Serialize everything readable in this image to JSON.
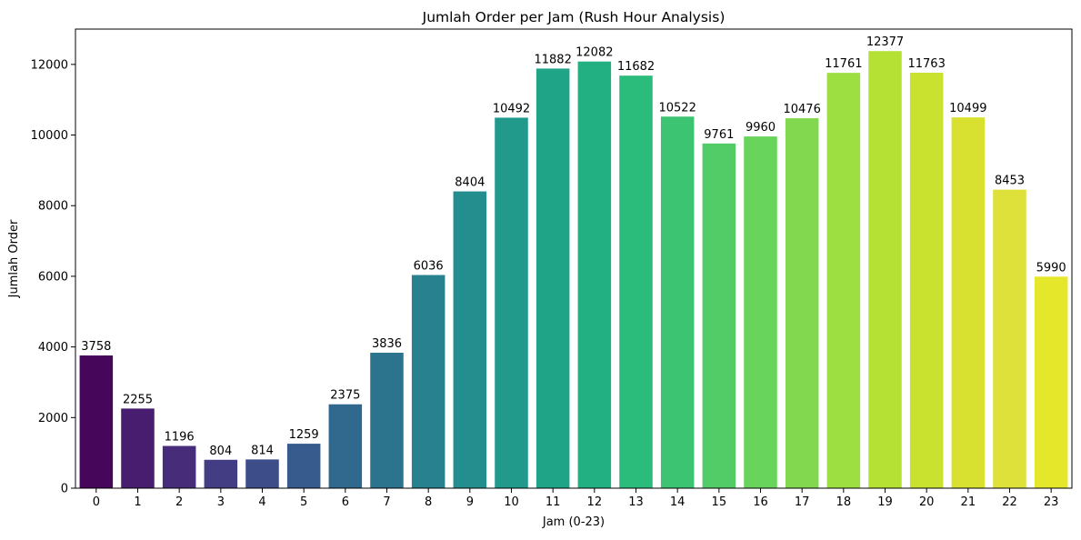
{
  "chart_data": {
    "type": "bar",
    "title": "Jumlah Order per Jam (Rush Hour Analysis)",
    "xlabel": "Jam (0-23)",
    "ylabel": "Jumlah Order",
    "categories": [
      "0",
      "1",
      "2",
      "3",
      "4",
      "5",
      "6",
      "7",
      "8",
      "9",
      "10",
      "11",
      "12",
      "13",
      "14",
      "15",
      "16",
      "17",
      "18",
      "19",
      "20",
      "21",
      "22",
      "23"
    ],
    "values": [
      3758,
      2255,
      1196,
      804,
      814,
      1259,
      2375,
      3836,
      6036,
      8404,
      10492,
      11882,
      12082,
      11682,
      10522,
      9761,
      9960,
      10476,
      11761,
      12377,
      11763,
      10499,
      8453,
      5990
    ],
    "value_labels": [
      "3758",
      "2255",
      "1196",
      "804",
      "814",
      "1259",
      "2375",
      "3836",
      "6036",
      "8404",
      "10492",
      "11882",
      "12082",
      "11682",
      "10522",
      "9761",
      "9960",
      "10476",
      "11761",
      "12377",
      "11763",
      "10499",
      "8453",
      "5990"
    ],
    "ylim": [
      0,
      13000
    ],
    "yticks": [
      0,
      2000,
      4000,
      6000,
      8000,
      10000,
      12000
    ],
    "ytick_labels": [
      "0",
      "2000",
      "4000",
      "6000",
      "8000",
      "10000",
      "12000"
    ],
    "grid": false,
    "legend": false,
    "colors": [
      "#46075a",
      "#481c6e",
      "#472c7a",
      "#433d84",
      "#3d4d8a",
      "#375b8d",
      "#31688e",
      "#2c748e",
      "#28818e",
      "#238e8d",
      "#21998b",
      "#1fa488",
      "#22b082",
      "#2bbb7b",
      "#3cc472",
      "#51cc67",
      "#69d45c",
      "#82d94f",
      "#9ddf41",
      "#b5e135",
      "#c9e12f",
      "#d8e12f",
      "#dde13a",
      "#e5e72a"
    ]
  }
}
